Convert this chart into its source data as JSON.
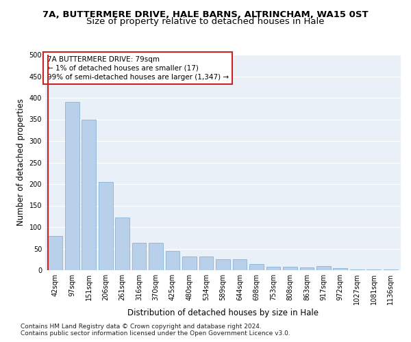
{
  "title_line1": "7A, BUTTERMERE DRIVE, HALE BARNS, ALTRINCHAM, WA15 0ST",
  "title_line2": "Size of property relative to detached houses in Hale",
  "xlabel": "Distribution of detached houses by size in Hale",
  "ylabel": "Number of detached properties",
  "categories": [
    "42sqm",
    "97sqm",
    "151sqm",
    "206sqm",
    "261sqm",
    "316sqm",
    "370sqm",
    "425sqm",
    "480sqm",
    "534sqm",
    "589sqm",
    "644sqm",
    "698sqm",
    "753sqm",
    "808sqm",
    "863sqm",
    "917sqm",
    "972sqm",
    "1027sqm",
    "1081sqm",
    "1136sqm"
  ],
  "values": [
    80,
    390,
    350,
    205,
    122,
    63,
    63,
    44,
    31,
    31,
    25,
    25,
    15,
    8,
    8,
    7,
    10,
    4,
    2,
    2,
    2
  ],
  "bar_color": "#b8d0ea",
  "bar_edge_color": "#7aaad0",
  "highlight_color": "#cc2222",
  "annotation_box_text": "7A BUTTERMERE DRIVE: 79sqm\n← 1% of detached houses are smaller (17)\n99% of semi-detached houses are larger (1,347) →",
  "ylim": [
    0,
    500
  ],
  "yticks": [
    0,
    50,
    100,
    150,
    200,
    250,
    300,
    350,
    400,
    450,
    500
  ],
  "background_color": "#eaf0f8",
  "footer_line1": "Contains HM Land Registry data © Crown copyright and database right 2024.",
  "footer_line2": "Contains public sector information licensed under the Open Government Licence v3.0.",
  "title_fontsize": 9.5,
  "subtitle_fontsize": 9.5,
  "axis_label_fontsize": 8.5,
  "tick_fontsize": 7,
  "annotation_fontsize": 7.5,
  "footer_fontsize": 6.5
}
